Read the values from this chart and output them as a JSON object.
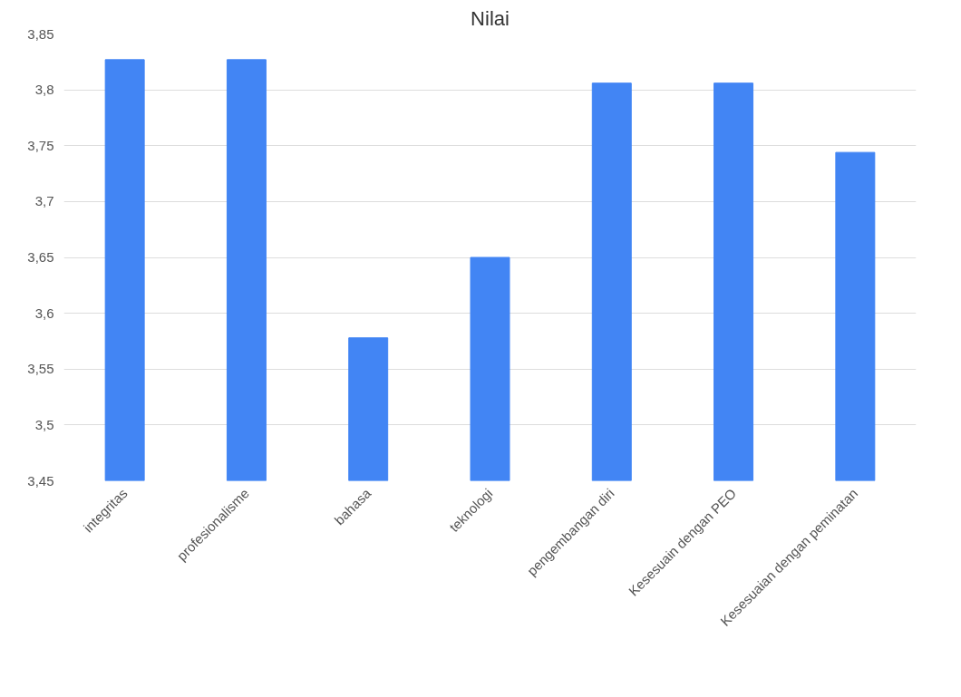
{
  "chart_data": {
    "type": "bar",
    "title": "Nilai",
    "categories": [
      "integritas",
      "profesionalisme",
      "bahasa",
      "teknologi",
      "pengembangan diri",
      "Kesesuain dengan PEO",
      "Kesesuaian dengan peminatan"
    ],
    "values": [
      3.827,
      3.827,
      3.578,
      3.65,
      3.806,
      3.806,
      3.744
    ],
    "color": "#4285f4",
    "ylim": [
      3.45,
      3.85
    ],
    "yticks": [
      {
        "value": 3.45,
        "label": "3,45"
      },
      {
        "value": 3.5,
        "label": "3,5"
      },
      {
        "value": 3.55,
        "label": "3,55"
      },
      {
        "value": 3.6,
        "label": "3,6"
      },
      {
        "value": 3.65,
        "label": "3,65"
      },
      {
        "value": 3.7,
        "label": "3,7"
      },
      {
        "value": 3.75,
        "label": "3,75"
      },
      {
        "value": 3.8,
        "label": "3,8"
      },
      {
        "value": 3.85,
        "label": "3,85"
      }
    ],
    "grid": "y"
  }
}
